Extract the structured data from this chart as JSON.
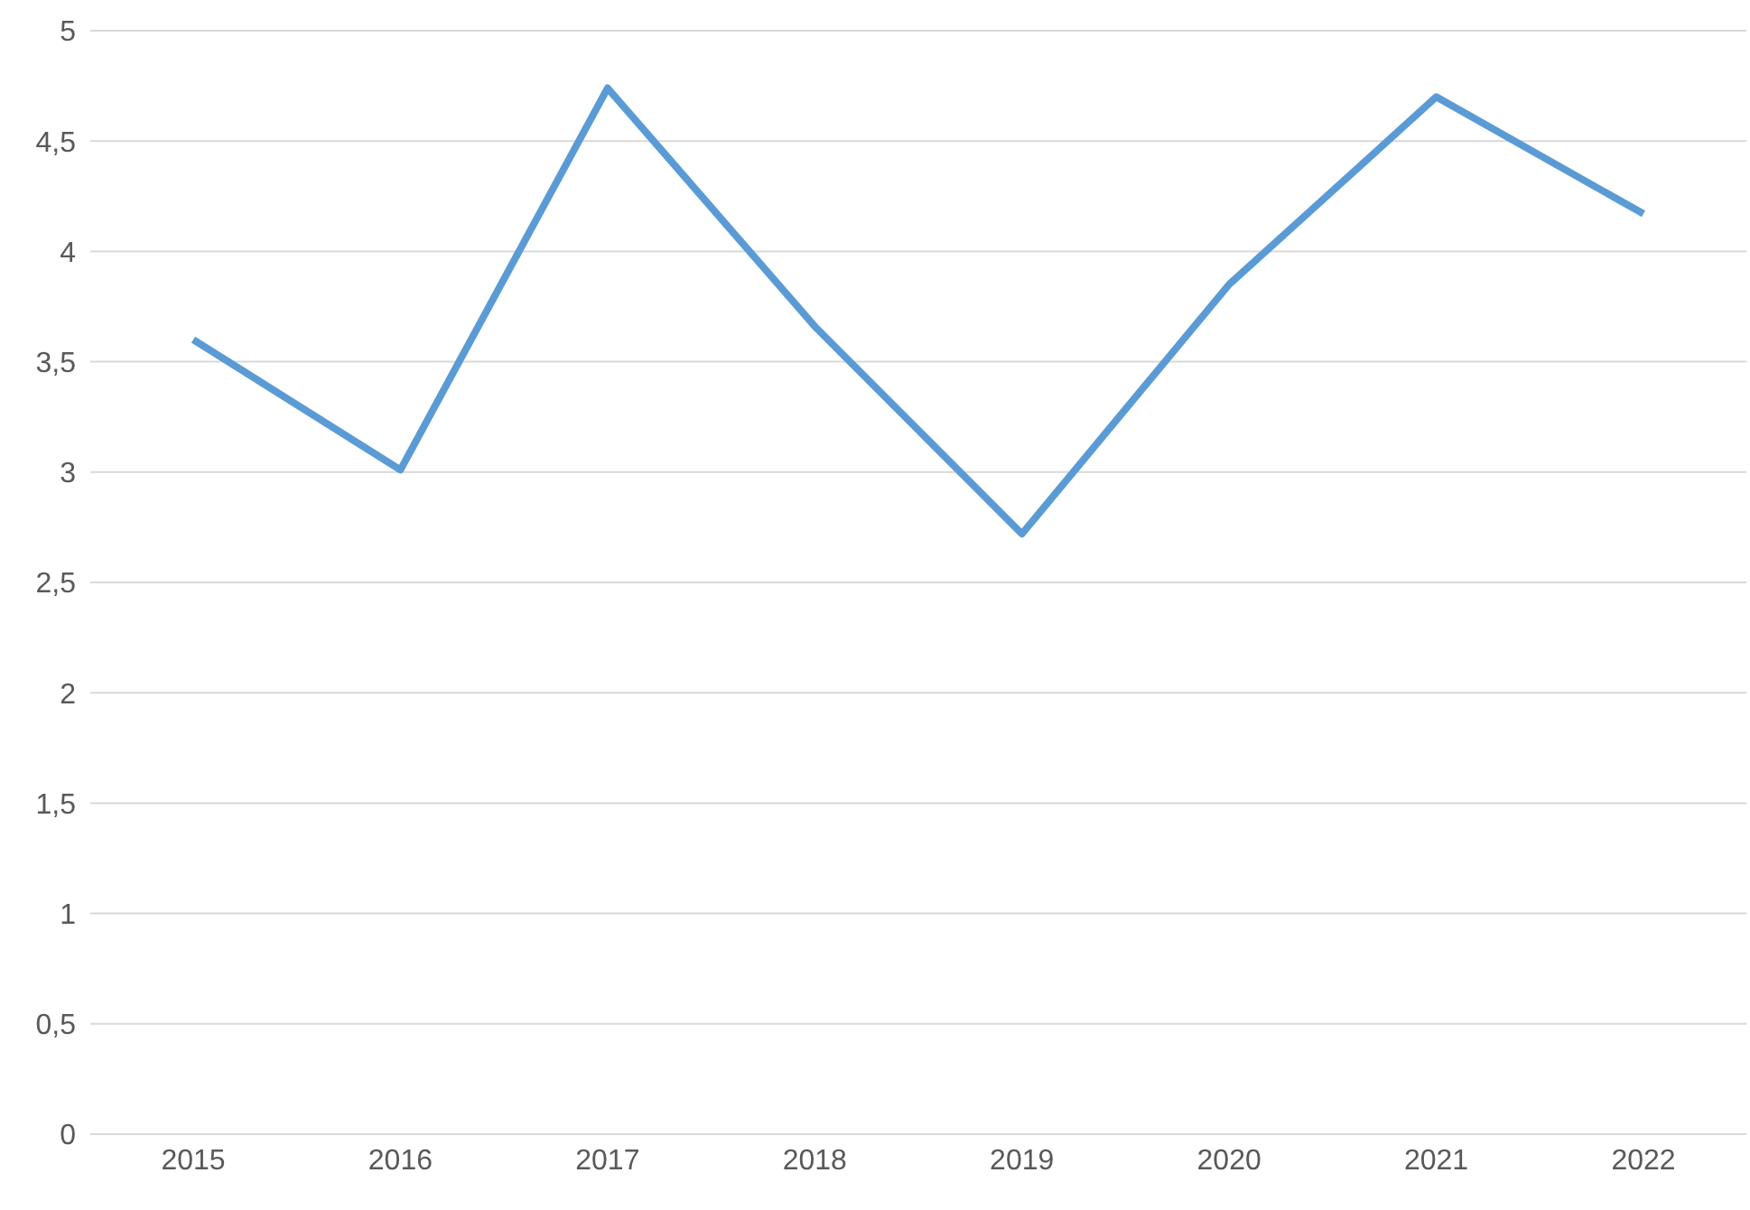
{
  "chart_data": {
    "type": "line",
    "categories": [
      "2015",
      "2016",
      "2017",
      "2018",
      "2019",
      "2020",
      "2021",
      "2022"
    ],
    "series": [
      {
        "color": "#5b9bd5",
        "values": [
          3.6,
          3.01,
          4.74,
          3.66,
          2.72,
          3.85,
          4.7,
          4.17
        ]
      }
    ],
    "ylim": [
      0,
      5
    ],
    "yticks": [
      0,
      {
        "value": 0.5,
        "label": "0,5"
      },
      1,
      {
        "value": 1.5,
        "label": "1,5"
      },
      2,
      {
        "value": 2.5,
        "label": "2,5"
      },
      3,
      {
        "value": 3.5,
        "label": "3,5"
      },
      4,
      {
        "value": 4.5,
        "label": "4,5"
      },
      5
    ],
    "grid": "y",
    "marker": "none",
    "line_style": "solid",
    "legend": false
  }
}
